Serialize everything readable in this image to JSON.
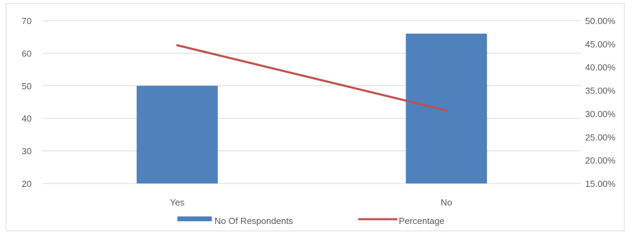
{
  "chart_data": {
    "type": "bar",
    "categories": [
      "Yes",
      "No"
    ],
    "series": [
      {
        "name": "No Of Respondents",
        "type": "bar",
        "axis": "left",
        "color": "#4f81bd",
        "values": [
          50,
          66
        ]
      },
      {
        "name": "Percentage",
        "type": "line",
        "axis": "right",
        "color": "#c0504d",
        "values": [
          0.447,
          0.307
        ]
      }
    ],
    "y_left": {
      "range": [
        20,
        70
      ],
      "ticks": [
        "70",
        "60",
        "50",
        "40",
        "30",
        "20"
      ]
    },
    "y_right": {
      "range": [
        0.15,
        0.5
      ],
      "ticks": [
        "50.00%",
        "45.00%",
        "40.00%",
        "35.00%",
        "30.00%",
        "25.00%",
        "20.00%",
        "15.00%"
      ]
    },
    "grid": true,
    "legend_position": "bottom"
  }
}
